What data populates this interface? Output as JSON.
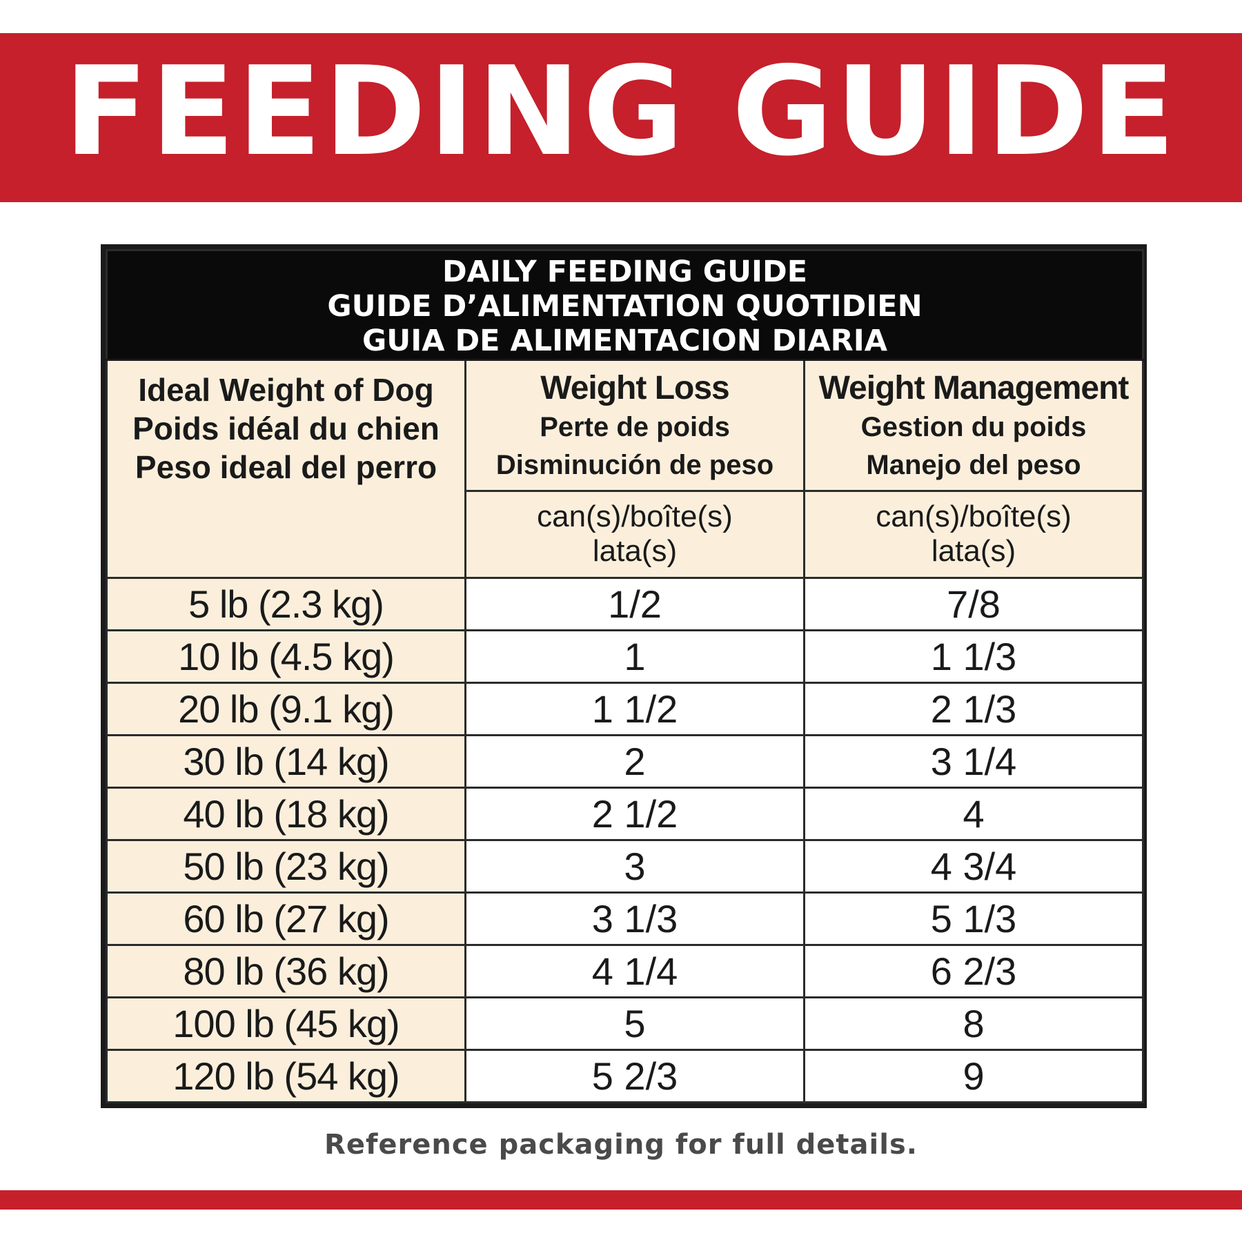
{
  "banner": {
    "title": "FEEDING GUIDE"
  },
  "table": {
    "title_lines": [
      "DAILY FEEDING GUIDE",
      "GUIDE D’ALIMENTATION QUOTIDIEN",
      "GUIA DE ALIMENTACION DIARIA"
    ],
    "weight_header": [
      "Ideal Weight of Dog",
      "Poids idéal du chien",
      "Peso ideal del perro"
    ],
    "columns": [
      {
        "title": "Weight Loss",
        "subtitles": [
          "Perte de poids",
          "Disminución de peso"
        ],
        "unit_lines": [
          "can(s)/boîte(s)",
          "lata(s)"
        ]
      },
      {
        "title": "Weight Management",
        "subtitles": [
          "Gestion du poids",
          "Manejo del peso"
        ],
        "unit_lines": [
          "can(s)/boîte(s)",
          "lata(s)"
        ]
      }
    ],
    "rows": [
      {
        "weight": "5 lb (2.3 kg)",
        "loss": "1/2",
        "management": "7/8"
      },
      {
        "weight": "10 lb (4.5 kg)",
        "loss": "1",
        "management": "1 1/3"
      },
      {
        "weight": "20 lb (9.1 kg)",
        "loss": "1 1/2",
        "management": "2 1/3"
      },
      {
        "weight": "30 lb (14 kg)",
        "loss": "2",
        "management": "3 1/4"
      },
      {
        "weight": "40 lb (18 kg)",
        "loss": "2 1/2",
        "management": "4"
      },
      {
        "weight": "50 lb (23 kg)",
        "loss": "3",
        "management": "4 3/4"
      },
      {
        "weight": "60 lb (27 kg)",
        "loss": "3 1/3",
        "management": "5 1/3"
      },
      {
        "weight": "80 lb (36 kg)",
        "loss": "4 1/4",
        "management": "6 2/3"
      },
      {
        "weight": "100 lb (45 kg)",
        "loss": "5",
        "management": "8"
      },
      {
        "weight": "120 lb (54 kg)",
        "loss": "5 2/3",
        "management": "9"
      }
    ]
  },
  "footnote": "Reference packaging for full details.",
  "colors": {
    "brand_red": "#c5202b",
    "cream": "#fbefdc",
    "title_bar": "#0a0a0a"
  }
}
